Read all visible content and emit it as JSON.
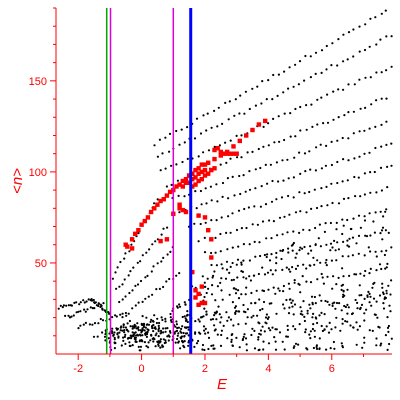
{
  "chart_data": {
    "type": "scatter",
    "title": "",
    "xlabel": "E",
    "ylabel": "<n>",
    "xlim": [
      -2.7,
      7.9
    ],
    "ylim": [
      0,
      190
    ],
    "x_ticks": [
      -2,
      0,
      2,
      4,
      6
    ],
    "x_tick_labels": [
      "-2",
      "0",
      "2",
      "4",
      "6"
    ],
    "y_ticks": [
      50,
      100,
      150
    ],
    "y_tick_labels": [
      "50",
      "100",
      "150"
    ],
    "grid": false,
    "legend": "none",
    "vertical_lines": [
      {
        "x": -1.1,
        "color": "#00aa00",
        "width": 1.5
      },
      {
        "x": -0.98,
        "color": "#dd00dd",
        "width": 1.5
      },
      {
        "x": 1.0,
        "color": "#dd00dd",
        "width": 1.5
      },
      {
        "x": 1.55,
        "color": "#0000ff",
        "width": 3
      }
    ],
    "series": [
      {
        "color": "#000000",
        "marker_size": 1.1,
        "bands": [
          {
            "x0": 0.4,
            "x1": 7.9,
            "y0": 115,
            "y1": 190
          },
          {
            "x0": 0.5,
            "x1": 7.9,
            "y0": 108,
            "y1": 175
          },
          {
            "x0": 0.6,
            "x1": 7.9,
            "y0": 100,
            "y1": 158
          },
          {
            "x0": 0.8,
            "x1": 7.9,
            "y0": 92,
            "y1": 142
          },
          {
            "x0": 1.0,
            "x1": 7.9,
            "y0": 85,
            "y1": 128
          },
          {
            "x0": 1.2,
            "x1": 7.9,
            "y0": 78,
            "y1": 115
          },
          {
            "x0": 1.5,
            "x1": 7.9,
            "y0": 70,
            "y1": 103
          },
          {
            "x0": 1.8,
            "x1": 7.9,
            "y0": 62,
            "y1": 92
          },
          {
            "x0": 2.0,
            "x1": 7.9,
            "y0": 55,
            "y1": 80
          },
          {
            "x0": 2.2,
            "x1": 7.9,
            "y0": 48,
            "y1": 68
          },
          {
            "x0": 2.5,
            "x1": 7.9,
            "y0": 40,
            "y1": 58
          },
          {
            "x0": 2.8,
            "x1": 7.9,
            "y0": 32,
            "y1": 48
          },
          {
            "x0": -0.9,
            "x1": 0.5,
            "y0": 42,
            "y1": 85
          },
          {
            "x0": -0.8,
            "x1": 0.8,
            "y0": 35,
            "y1": 70
          },
          {
            "x0": -0.7,
            "x1": 1.0,
            "y0": 28,
            "y1": 58
          },
          {
            "x0": -0.6,
            "x1": 1.2,
            "y0": 20,
            "y1": 45
          },
          {
            "x0": -2.7,
            "x1": -1.6,
            "y0": 25,
            "y1": 30
          },
          {
            "x0": -1.6,
            "x1": -1.0,
            "y0": 30,
            "y1": 22
          },
          {
            "x0": -2.4,
            "x1": -1.2,
            "y0": 20,
            "y1": 28
          },
          {
            "x0": -2.0,
            "x1": -0.5,
            "y0": 15,
            "y1": 22
          },
          {
            "x0": -1.5,
            "x1": 0.5,
            "y0": 10,
            "y1": 18
          },
          {
            "x0": -1.0,
            "x1": 1.5,
            "y0": 8,
            "y1": 14
          },
          {
            "x0": -0.5,
            "x1": 2.0,
            "y0": 5,
            "y1": 12
          }
        ],
        "scatter_regions": [
          {
            "x0": -1.0,
            "x1": 7.9,
            "y0": 2,
            "y1": 40,
            "n": 380
          },
          {
            "x0": 1.5,
            "x1": 7.9,
            "y0": 20,
            "y1": 80,
            "n": 180
          },
          {
            "x0": -1.2,
            "x1": 1.5,
            "y0": 5,
            "y1": 30,
            "n": 120
          }
        ]
      },
      {
        "color": "#ff0000",
        "marker_size": 2.2,
        "points": [
          [
            -0.45,
            59
          ],
          [
            -0.3,
            63
          ],
          [
            -0.2,
            66
          ],
          [
            -0.1,
            68
          ],
          [
            0.0,
            71
          ],
          [
            0.1,
            73
          ],
          [
            0.2,
            75
          ],
          [
            0.3,
            78
          ],
          [
            0.4,
            80
          ],
          [
            0.5,
            82
          ],
          [
            0.6,
            84
          ],
          [
            0.7,
            85
          ],
          [
            0.8,
            87
          ],
          [
            0.9,
            89
          ],
          [
            1.0,
            90
          ],
          [
            1.1,
            92
          ],
          [
            1.2,
            93
          ],
          [
            1.3,
            95
          ],
          [
            1.4,
            96
          ],
          [
            1.5,
            98
          ],
          [
            1.6,
            99
          ],
          [
            1.7,
            101
          ],
          [
            1.8,
            102
          ],
          [
            1.9,
            104
          ],
          [
            2.0,
            104
          ],
          [
            2.1,
            105
          ],
          [
            2.3,
            107
          ],
          [
            2.5,
            109
          ],
          [
            2.7,
            111
          ],
          [
            2.9,
            114
          ],
          [
            3.1,
            117
          ],
          [
            3.3,
            120
          ],
          [
            3.5,
            123
          ],
          [
            3.7,
            126
          ],
          [
            3.9,
            128
          ],
          [
            1.3,
            92
          ],
          [
            1.4,
            94
          ],
          [
            1.5,
            94
          ],
          [
            1.6,
            96
          ],
          [
            1.7,
            97
          ],
          [
            1.8,
            99
          ],
          [
            1.9,
            100
          ],
          [
            2.0,
            101
          ],
          [
            1.6,
            92
          ],
          [
            1.7,
            93
          ],
          [
            1.8,
            95
          ],
          [
            1.9,
            96
          ],
          [
            2.0,
            98
          ],
          [
            2.1,
            99
          ],
          [
            2.2,
            101
          ],
          [
            2.3,
            102
          ],
          [
            2.3,
            112
          ],
          [
            2.4,
            113
          ],
          [
            2.5,
            111
          ],
          [
            2.6,
            110
          ],
          [
            2.7,
            110
          ],
          [
            2.8,
            110
          ],
          [
            2.9,
            110
          ],
          [
            3.0,
            110
          ],
          [
            1.2,
            80
          ],
          [
            1.3,
            79
          ],
          [
            1.4,
            78
          ],
          [
            1.8,
            76
          ],
          [
            2.0,
            75
          ],
          [
            2.2,
            63
          ],
          [
            2.2,
            53
          ],
          [
            -0.5,
            60
          ],
          [
            -0.3,
            58
          ],
          [
            0.6,
            62
          ],
          [
            0.8,
            63
          ],
          [
            1.0,
            77
          ],
          [
            1.2,
            82
          ],
          [
            2.1,
            68
          ],
          [
            1.6,
            45
          ],
          [
            1.9,
            37
          ],
          [
            1.7,
            35
          ],
          [
            1.8,
            27
          ],
          [
            1.9,
            28
          ],
          [
            2.0,
            28
          ],
          [
            1.7,
            31
          ],
          [
            1.8,
            33
          ]
        ]
      }
    ]
  }
}
